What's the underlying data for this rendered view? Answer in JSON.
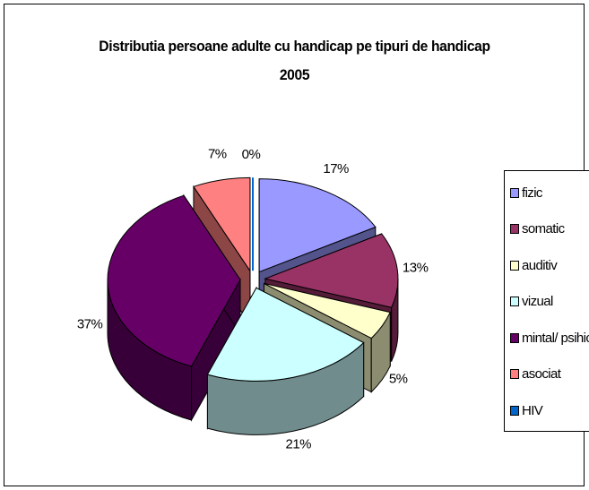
{
  "chart_data": {
    "type": "pie",
    "title": "Distributia persoane adulte cu handicap pe tipuri de handicap",
    "subtitle": "2005",
    "legend_position": "right",
    "categories": [
      "fizic",
      "somatic",
      "auditiv",
      "vizual",
      "mintal/ psihic",
      "asociat",
      "HIV"
    ],
    "values": [
      17,
      13,
      5,
      21,
      37,
      7,
      0
    ],
    "labels": [
      "17%",
      "13%",
      "5%",
      "21%",
      "37%",
      "7%",
      "0%"
    ],
    "colors": [
      "#9999ff",
      "#993366",
      "#ffffcc",
      "#ccffff",
      "#660066",
      "#ff8080",
      "#0066cc"
    ]
  }
}
